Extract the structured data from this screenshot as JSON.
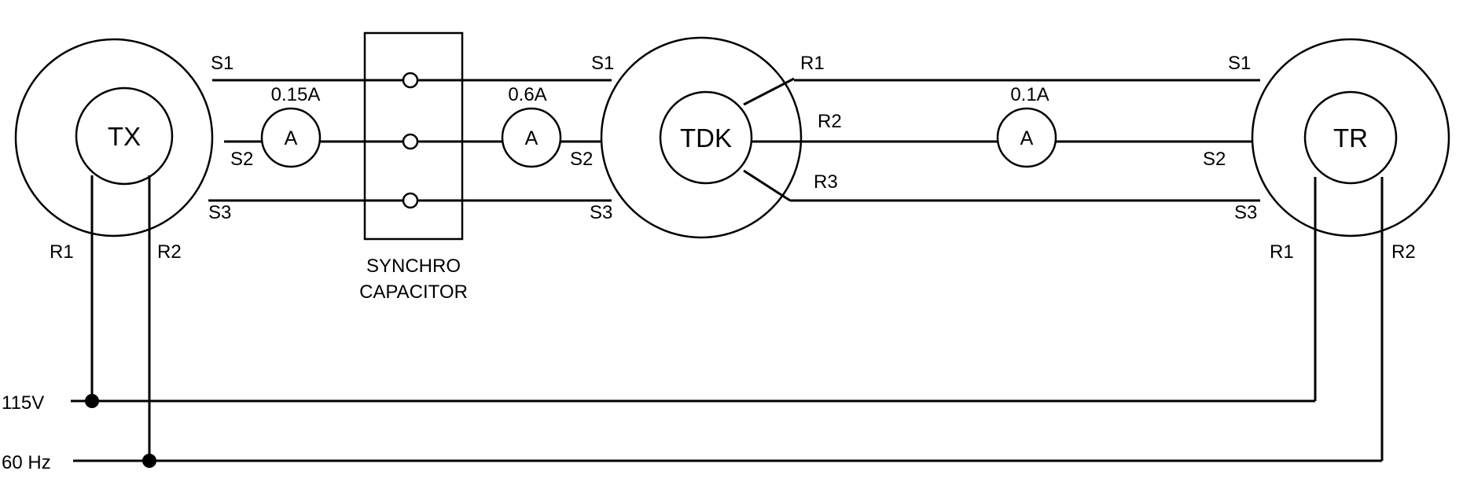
{
  "units": {
    "tx": {
      "name": "TX",
      "S1": "S1",
      "S2": "S2",
      "S3": "S3",
      "R1": "R1",
      "R2": "R2"
    },
    "tdk": {
      "name": "TDK",
      "S1": "S1",
      "S2": "S2",
      "S3": "S3",
      "R1": "R1",
      "R2": "R2",
      "R3": "R3"
    },
    "tr": {
      "name": "TR",
      "S1": "S1",
      "S2": "S2",
      "S3": "S3",
      "R1": "R1",
      "R2": "R2"
    }
  },
  "capacitor": {
    "line1": "SYNCHRO",
    "line2": "CAPACITOR"
  },
  "ammeters": [
    {
      "symbol": "A",
      "reading": "0.15A"
    },
    {
      "symbol": "A",
      "reading": "0.6A"
    },
    {
      "symbol": "A",
      "reading": "0.1A"
    }
  ],
  "supply": {
    "voltage": "115V",
    "frequency": "60 Hz"
  }
}
